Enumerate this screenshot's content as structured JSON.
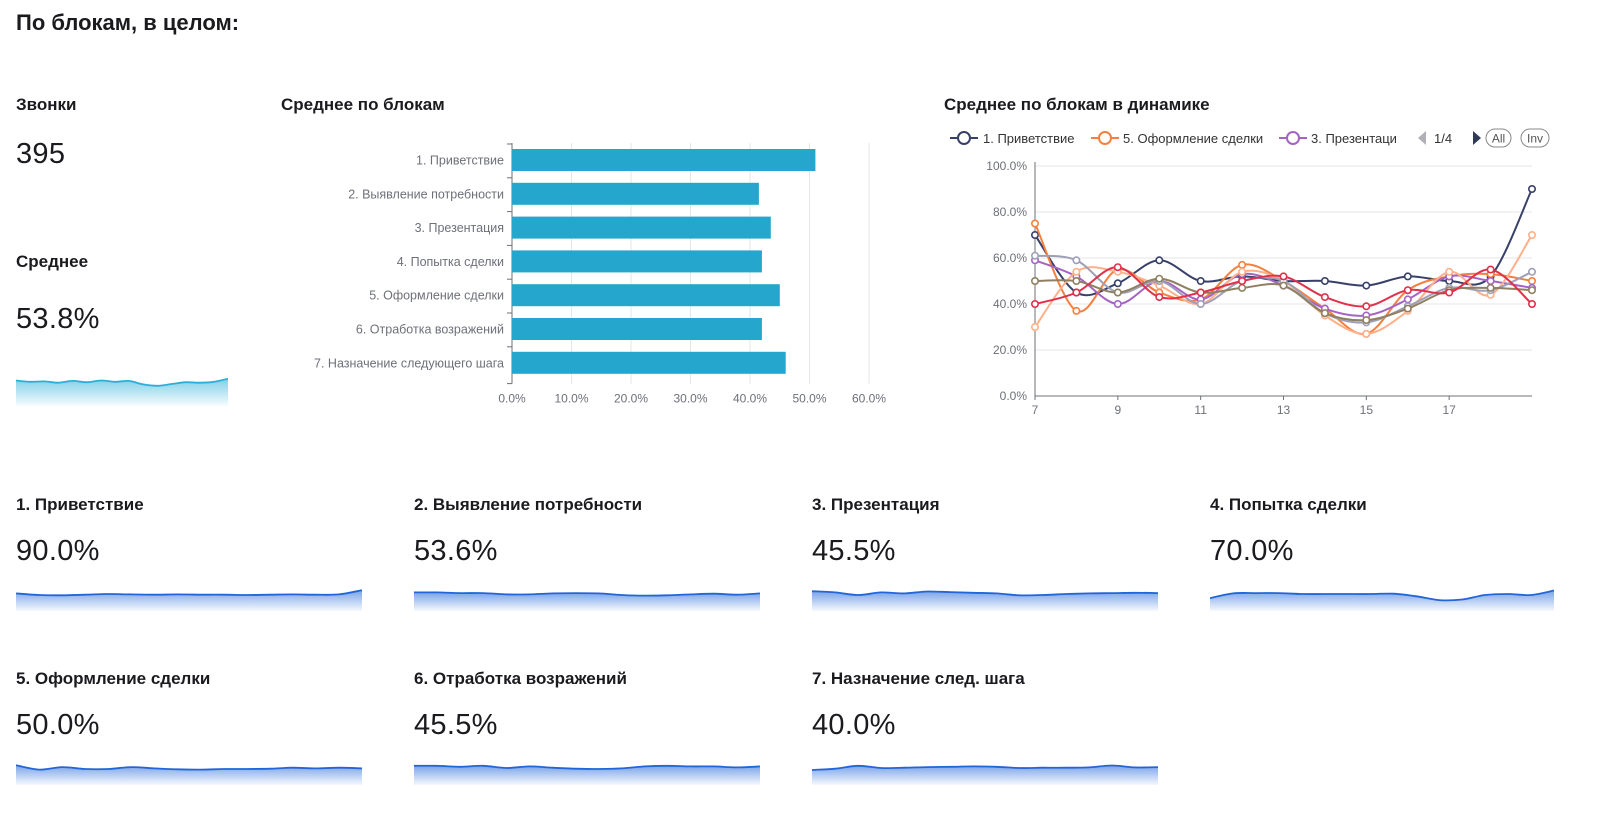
{
  "page": {
    "title": "По блокам, в целом:"
  },
  "calls": {
    "title": "Звонки",
    "value": "395"
  },
  "average": {
    "title": "Среднее",
    "value": "53.8%",
    "spark": [
      58,
      55,
      56,
      53,
      57,
      54,
      58,
      55,
      57,
      49,
      46,
      50,
      54,
      53,
      55,
      62
    ]
  },
  "bar_chart": {
    "title": "Среднее по блокам"
  },
  "line_chart": {
    "title": "Среднее по блокам в динамике",
    "legend_visible": [
      {
        "label": "1. Приветствие",
        "color": "#38406a"
      },
      {
        "label": "5. Оформление сделки",
        "color": "#f5803e"
      },
      {
        "label": "3. Презентаци",
        "color": "#a564c3"
      }
    ],
    "pager": "1/4",
    "all_label": "All",
    "inv_label": "Inv"
  },
  "chart_data": [
    {
      "type": "bar",
      "orientation": "horizontal",
      "categories": [
        "1. Приветствие",
        "2. Выявление потребности",
        "3. Презентация",
        "4. Попытка сделки",
        "5. Оформление сделки",
        "6. Отработка возражений",
        "7. Назначение следующего шага"
      ],
      "values": [
        51.0,
        41.5,
        43.5,
        42.0,
        45.0,
        42.0,
        46.0
      ],
      "xlim": [
        0,
        60
      ],
      "ticks": [
        "0.0%",
        "10.0%",
        "20.0%",
        "30.0%",
        "40.0%",
        "50.0%",
        "60.0%"
      ],
      "color": "#25a6cc",
      "grid": true
    },
    {
      "type": "line",
      "x": [
        7,
        8,
        9,
        10,
        11,
        12,
        13,
        14,
        15,
        16,
        17,
        18,
        19
      ],
      "x_ticks": [
        "7",
        "9",
        "11",
        "13",
        "15",
        "17"
      ],
      "y_ticks": [
        "0.0%",
        "20.0%",
        "40.0%",
        "60.0%",
        "80.0%",
        "100.0%"
      ],
      "ylim": [
        0,
        100
      ],
      "grid": true,
      "series": [
        {
          "color": "#38406a",
          "values": [
            70,
            45,
            49,
            59,
            50,
            52,
            50,
            50,
            48,
            52,
            50,
            52,
            90
          ]
        },
        {
          "color": "#f5803e",
          "values": [
            75,
            37,
            55,
            45,
            42,
            57,
            50,
            38,
            27,
            46,
            52,
            53,
            50
          ]
        },
        {
          "color": "#a564c3",
          "values": [
            59,
            52,
            40,
            50,
            42,
            53,
            48,
            38,
            35,
            42,
            52,
            50,
            47
          ]
        },
        {
          "color": "#ffb08a",
          "values": [
            30,
            54,
            54,
            48,
            40,
            54,
            50,
            35,
            27,
            37,
            54,
            44,
            70
          ]
        },
        {
          "color": "#9ea0b8",
          "values": [
            61,
            59,
            45,
            50,
            40,
            50,
            50,
            36,
            32,
            39,
            47,
            46,
            54
          ]
        },
        {
          "color": "#8e8060",
          "values": [
            50,
            50,
            45,
            51,
            45,
            47,
            48,
            36,
            33,
            38,
            46,
            47,
            46
          ]
        },
        {
          "color": "#e0304a",
          "values": [
            40,
            45,
            56,
            43,
            45,
            50,
            52,
            43,
            39,
            46,
            45,
            55,
            40
          ]
        }
      ]
    }
  ],
  "blocks": [
    {
      "title": "1. Приветствие",
      "value": "90.0%",
      "spark": [
        55,
        50,
        49,
        51,
        53,
        52,
        51,
        52,
        51,
        51,
        50,
        51,
        52,
        51,
        52,
        65
      ]
    },
    {
      "title": "2. Выявление потребности",
      "value": "53.6%",
      "spark": [
        58,
        58,
        56,
        56,
        52,
        52,
        55,
        56,
        55,
        50,
        48,
        49,
        52,
        54,
        51,
        55
      ]
    },
    {
      "title": "3. Презентация",
      "value": "45.5%",
      "spark": [
        62,
        58,
        50,
        58,
        55,
        61,
        59,
        57,
        55,
        49,
        50,
        53,
        55,
        56,
        57,
        56
      ]
    },
    {
      "title": "4. Попытка сделки",
      "value": "70.0%",
      "spark": [
        40,
        55,
        56,
        56,
        53,
        53,
        53,
        53,
        54,
        46,
        34,
        36,
        50,
        53,
        50,
        64
      ]
    },
    {
      "title": "5. Оформление сделки",
      "value": "50.0%",
      "spark": [
        62,
        48,
        56,
        50,
        50,
        56,
        52,
        49,
        48,
        50,
        50,
        51,
        54,
        52,
        54,
        52
      ]
    },
    {
      "title": "6. Отработка возражений",
      "value": "45.5%",
      "spark": [
        60,
        60,
        57,
        60,
        53,
        58,
        54,
        51,
        50,
        52,
        58,
        60,
        58,
        58,
        55,
        58
      ]
    },
    {
      "title": "7. Назначение след. шага",
      "value": "40.0%",
      "spark": [
        47,
        51,
        60,
        53,
        54,
        56,
        57,
        58,
        57,
        53,
        54,
        54,
        55,
        61,
        55,
        56
      ]
    }
  ],
  "colors": {
    "spark_light": "#2ab0d8",
    "spark_blue": "#2166d9"
  }
}
